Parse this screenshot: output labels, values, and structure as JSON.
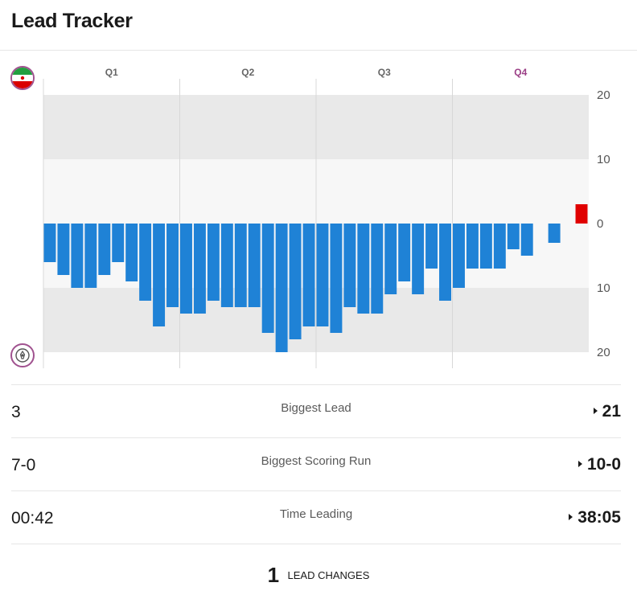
{
  "header": {
    "title": "Lead Tracker"
  },
  "chart_data": {
    "type": "bar",
    "title": "",
    "quarters": [
      "Q1",
      "Q2",
      "Q3",
      "Q4"
    ],
    "active_quarter": "Q4",
    "y_tick_labels": [
      "20",
      "10",
      "0",
      "10",
      "20"
    ],
    "ylim": [
      -20,
      20
    ],
    "grid": true,
    "colors": {
      "top_team": "#e00000",
      "bottom_team": "#1f82d6",
      "active_quarter": "#9b3f86"
    },
    "series": [
      {
        "team": "top",
        "values": [
          3
        ],
        "index": [
          39
        ]
      },
      {
        "team": "bottom",
        "values": [
          -6,
          -8,
          -10,
          -10,
          -8,
          -6,
          -9,
          -12,
          -16,
          -13,
          -14,
          -14,
          -12,
          -13,
          -13,
          -13,
          -17,
          -20,
          -18,
          -16,
          -16,
          -17,
          -13,
          -14,
          -14,
          -11,
          -9,
          -11,
          -7,
          -12,
          -10,
          -7,
          -7,
          -7,
          -4,
          -5,
          0,
          -3
        ],
        "index": [
          0,
          1,
          2,
          3,
          4,
          5,
          6,
          7,
          8,
          9,
          10,
          11,
          12,
          13,
          14,
          15,
          16,
          17,
          18,
          19,
          20,
          21,
          22,
          23,
          24,
          25,
          26,
          27,
          28,
          29,
          30,
          31,
          32,
          33,
          34,
          35,
          36,
          37
        ]
      }
    ],
    "bar_slots": 40
  },
  "teams": {
    "top_logo": "iran-flag-icon",
    "bottom_logo": "team-crest-icon"
  },
  "stats": [
    {
      "label": "Biggest Lead",
      "left": "3",
      "right": "21"
    },
    {
      "label": "Biggest Scoring Run",
      "left": "7-0",
      "right": "10-0"
    },
    {
      "label": "Time Leading",
      "left": "00:42",
      "right": "38:05"
    }
  ],
  "lead_changes": {
    "count": "1",
    "label": "LEAD CHANGES"
  }
}
